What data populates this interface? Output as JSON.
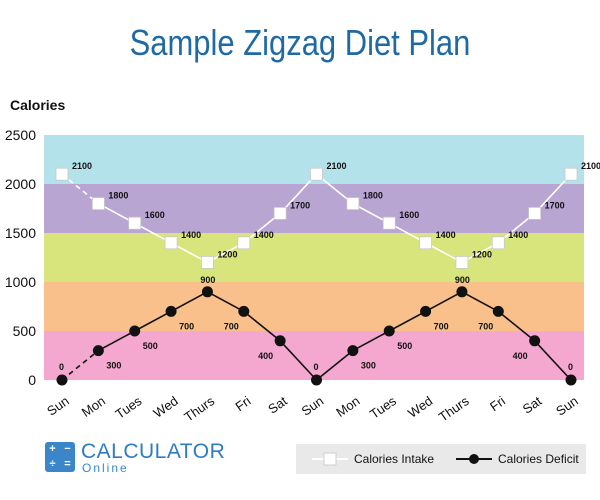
{
  "header": {
    "title": "Sample Zigzag Diet Plan"
  },
  "chart_data": {
    "type": "line",
    "title": "Sample Zigzag Diet Plan",
    "ylabel": "Calories",
    "xlabel": "",
    "ylim": [
      0,
      2500
    ],
    "yticks": [
      0,
      500,
      1000,
      1500,
      2000,
      2500
    ],
    "categories": [
      "Sun",
      "Mon",
      "Tues",
      "Wed",
      "Thurs",
      "Fri",
      "Sat",
      "Sun",
      "Mon",
      "Tues",
      "Wed",
      "Thurs",
      "Fri",
      "Sat",
      "Sun"
    ],
    "bands": [
      {
        "from": 0,
        "to": 500,
        "color": "#f5a8cf"
      },
      {
        "from": 500,
        "to": 1000,
        "color": "#f9c08c"
      },
      {
        "from": 1000,
        "to": 1500,
        "color": "#d7e57c"
      },
      {
        "from": 1500,
        "to": 2000,
        "color": "#b9a5d1"
      },
      {
        "from": 2000,
        "to": 2500,
        "color": "#b4e2ea"
      }
    ],
    "series": [
      {
        "name": "Calories Intake",
        "color": "#ffffff",
        "marker": "square",
        "values": [
          2100,
          1800,
          1600,
          1400,
          1200,
          1400,
          1700,
          2100,
          1800,
          1600,
          1400,
          1200,
          1400,
          1700,
          2100
        ]
      },
      {
        "name": "Calories Deficit",
        "color": "#111111",
        "marker": "circle",
        "values": [
          0,
          300,
          500,
          700,
          900,
          700,
          400,
          0,
          300,
          500,
          700,
          900,
          700,
          400,
          0
        ]
      }
    ],
    "legend": "bottom-right",
    "grid": false
  },
  "logo": {
    "text1": "CALCULATOR",
    "text2": "Online",
    "glyphs": [
      "+",
      "−",
      "÷",
      "="
    ]
  },
  "legend_labels": {
    "intake": "Calories Intake",
    "deficit": "Calories Deficit"
  }
}
